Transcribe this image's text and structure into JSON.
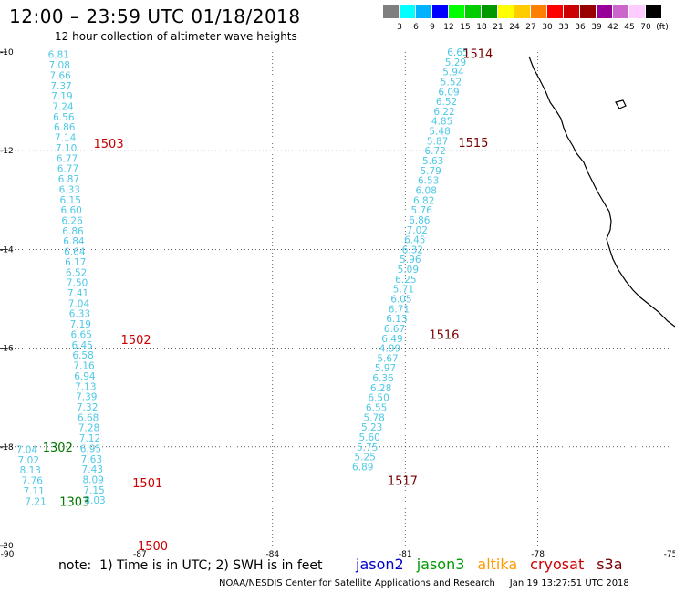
{
  "header": {
    "title": "12:00 – 23:59 UTC 01/18/2018",
    "subtitle": "12 hour collection of altimeter wave heights"
  },
  "colorbar": {
    "stops": [
      {
        "label": "3",
        "color": "#7f7f7f"
      },
      {
        "label": "6",
        "color": "#00ffff"
      },
      {
        "label": "9",
        "color": "#00b2ff"
      },
      {
        "label": "12",
        "color": "#0000ff"
      },
      {
        "label": "15",
        "color": "#00ff00"
      },
      {
        "label": "18",
        "color": "#00cc00"
      },
      {
        "label": "21",
        "color": "#009900"
      },
      {
        "label": "24",
        "color": "#ffff00"
      },
      {
        "label": "27",
        "color": "#ffcc00"
      },
      {
        "label": "30",
        "color": "#ff8000"
      },
      {
        "label": "33",
        "color": "#ff0000"
      },
      {
        "label": "36",
        "color": "#cc0000"
      },
      {
        "label": "39",
        "color": "#990000"
      },
      {
        "label": "42",
        "color": "#990099"
      },
      {
        "label": "45",
        "color": "#cc66cc"
      },
      {
        "label": "70",
        "color": "#ffccff"
      },
      {
        "label": "(ft)",
        "color": "#000000"
      }
    ]
  },
  "map": {
    "lon_ticks": [
      "-90",
      "-87",
      "-84",
      "-81",
      "-78",
      "-75"
    ],
    "lat_ticks": [
      "-10",
      "-12",
      "-14",
      "-16",
      "-18",
      "-20"
    ],
    "wave_color": "#4dc8e6",
    "track_a": [
      {
        "value": "6.81",
        "lat": -10.05
      },
      {
        "value": "7.08",
        "lat": -10.26
      },
      {
        "value": "7.66",
        "lat": -10.47
      },
      {
        "value": "7.37",
        "lat": -10.68
      },
      {
        "value": "7.19",
        "lat": -10.89
      },
      {
        "value": "7.24",
        "lat": -11.1
      },
      {
        "value": "6.56",
        "lat": -11.31
      },
      {
        "value": "6.86",
        "lat": -11.52
      },
      {
        "value": "7.14",
        "lat": -11.73
      },
      {
        "value": "7.10",
        "lat": -11.94
      },
      {
        "value": "6.77",
        "lat": -12.15
      },
      {
        "value": "6.77",
        "lat": -12.36
      },
      {
        "value": "6.87",
        "lat": -12.57
      },
      {
        "value": "6.33",
        "lat": -12.78
      },
      {
        "value": "6.15",
        "lat": -12.99
      },
      {
        "value": "6.60",
        "lat": -13.2
      },
      {
        "value": "6.26",
        "lat": -13.41
      },
      {
        "value": "6.86",
        "lat": -13.62
      },
      {
        "value": "6.84",
        "lat": -13.83
      },
      {
        "value": "6.64",
        "lat": -14.04
      },
      {
        "value": "6.17",
        "lat": -14.25
      },
      {
        "value": "6.52",
        "lat": -14.46
      },
      {
        "value": "7.50",
        "lat": -14.67
      },
      {
        "value": "7.41",
        "lat": -14.88
      },
      {
        "value": "7.04",
        "lat": -15.09
      },
      {
        "value": "6.33",
        "lat": -15.3
      },
      {
        "value": "7.19",
        "lat": -15.51
      },
      {
        "value": "6.65",
        "lat": -15.72
      },
      {
        "value": "6.45",
        "lat": -15.93
      },
      {
        "value": "6.58",
        "lat": -16.14
      },
      {
        "value": "7.16",
        "lat": -16.35
      },
      {
        "value": "6.94",
        "lat": -16.56
      },
      {
        "value": "7.13",
        "lat": -16.77
      },
      {
        "value": "7.39",
        "lat": -16.98
      },
      {
        "value": "7.32",
        "lat": -17.19
      },
      {
        "value": "6.68",
        "lat": -17.4
      },
      {
        "value": "7.28",
        "lat": -17.61
      },
      {
        "value": "7.12",
        "lat": -17.82
      },
      {
        "value": "6.95",
        "lat": -18.03
      },
      {
        "value": "7.63",
        "lat": -18.24
      },
      {
        "value": "7.43",
        "lat": -18.45
      },
      {
        "value": "8.09",
        "lat": -18.66
      },
      {
        "value": "7.15",
        "lat": -18.87
      },
      {
        "value": "8.03",
        "lat": -19.08
      }
    ],
    "track_b": [
      {
        "value": "7.04",
        "lat": -18.05
      },
      {
        "value": "7.02",
        "lat": -18.26
      },
      {
        "value": "8.13",
        "lat": -18.47
      },
      {
        "value": "7.76",
        "lat": -18.68
      },
      {
        "value": "7.11",
        "lat": -18.89
      },
      {
        "value": "7.21",
        "lat": -19.1
      }
    ],
    "track_c": [
      {
        "value": "6.65",
        "lat": -10.0
      },
      {
        "value": "5.29",
        "lat": -10.2
      },
      {
        "value": "5.94",
        "lat": -10.4
      },
      {
        "value": "5.52",
        "lat": -10.6
      },
      {
        "value": "6.09",
        "lat": -10.8
      },
      {
        "value": "6.52",
        "lat": -11.0
      },
      {
        "value": "6.22",
        "lat": -11.2
      },
      {
        "value": "4.85",
        "lat": -11.4
      },
      {
        "value": "5.48",
        "lat": -11.6
      },
      {
        "value": "5.87",
        "lat": -11.8
      },
      {
        "value": "6.72",
        "lat": -12.0
      },
      {
        "value": "5.63",
        "lat": -12.2
      },
      {
        "value": "5.79",
        "lat": -12.4
      },
      {
        "value": "6.53",
        "lat": -12.6
      },
      {
        "value": "6.08",
        "lat": -12.8
      },
      {
        "value": "6.82",
        "lat": -13.0
      },
      {
        "value": "5.76",
        "lat": -13.2
      },
      {
        "value": "6.86",
        "lat": -13.4
      },
      {
        "value": "7.02",
        "lat": -13.6
      },
      {
        "value": "6.45",
        "lat": -13.8
      },
      {
        "value": "6.32",
        "lat": -14.0
      },
      {
        "value": "5.96",
        "lat": -14.2
      },
      {
        "value": "5.09",
        "lat": -14.4
      },
      {
        "value": "6.25",
        "lat": -14.6
      },
      {
        "value": "5.71",
        "lat": -14.8
      },
      {
        "value": "6.05",
        "lat": -15.0
      },
      {
        "value": "6.71",
        "lat": -15.2
      },
      {
        "value": "6.13",
        "lat": -15.4
      },
      {
        "value": "6.67",
        "lat": -15.6
      },
      {
        "value": "6.49",
        "lat": -15.8
      },
      {
        "value": "4.99",
        "lat": -16.0
      },
      {
        "value": "5.67",
        "lat": -16.2
      },
      {
        "value": "5.97",
        "lat": -16.4
      },
      {
        "value": "6.36",
        "lat": -16.6
      },
      {
        "value": "6.28",
        "lat": -16.8
      },
      {
        "value": "6.50",
        "lat": -17.0
      },
      {
        "value": "6.55",
        "lat": -17.2
      },
      {
        "value": "5.78",
        "lat": -17.4
      },
      {
        "value": "5.23",
        "lat": -17.6
      },
      {
        "value": "5.60",
        "lat": -17.8
      },
      {
        "value": "5.75",
        "lat": -18.0
      },
      {
        "value": "5.25",
        "lat": -18.2
      },
      {
        "value": "6.89",
        "lat": -18.4
      }
    ],
    "time_labels": [
      {
        "text": "1503",
        "color": "#cc0000"
      },
      {
        "text": "1502",
        "color": "#cc0000"
      },
      {
        "text": "1501",
        "color": "#cc0000"
      },
      {
        "text": "1500",
        "color": "#cc0000"
      },
      {
        "text": "1302",
        "color": "#007700"
      },
      {
        "text": "1303",
        "color": "#007700"
      },
      {
        "text": "1514",
        "color": "#770000"
      },
      {
        "text": "1515",
        "color": "#770000"
      },
      {
        "text": "1516",
        "color": "#770000"
      },
      {
        "text": "1517",
        "color": "#770000"
      }
    ]
  },
  "note": "note:  1) Time is in UTC; 2) SWH is in feet",
  "legend": [
    {
      "name": "jason2",
      "color": "#0000cc"
    },
    {
      "name": "jason3",
      "color": "#009900"
    },
    {
      "name": "altika",
      "color": "#ff9900"
    },
    {
      "name": "cryosat",
      "color": "#cc0000"
    },
    {
      "name": "s3a",
      "color": "#770000"
    }
  ],
  "footer": "NOAA/NESDIS Center for Satellite Applications and Research     Jan 19 13:27:51 UTC 2018"
}
